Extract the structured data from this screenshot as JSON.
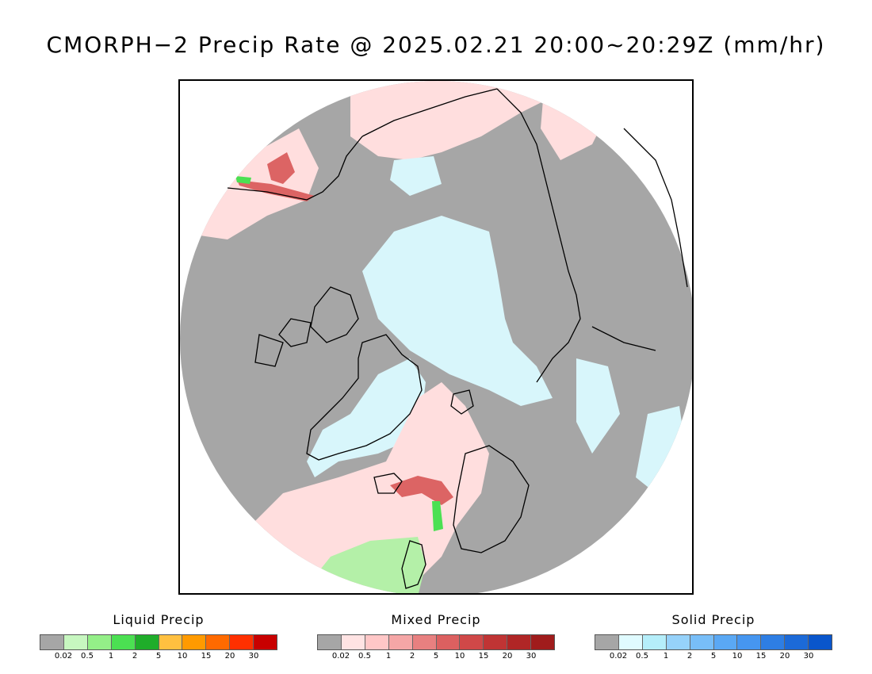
{
  "title": "CMORPH−2 Precip Rate @ 2025.02.21 20:00~20:29Z (mm/hr)",
  "legends": [
    {
      "id": "liquid",
      "title": "Liquid Precip",
      "colors": [
        "#a6a6a6",
        "#c7f7c0",
        "#94ef88",
        "#4be052",
        "#1fad2a",
        "#ffc040",
        "#ff9a00",
        "#ff6a00",
        "#ff3000",
        "#c80000"
      ],
      "ticks": [
        "0.02",
        "0.5",
        "1",
        "2",
        "5",
        "10",
        "15",
        "20",
        "30"
      ]
    },
    {
      "id": "mixed",
      "title": "Mixed Precip",
      "colors": [
        "#a6a6a6",
        "#ffe3e3",
        "#ffc7c7",
        "#f5a6a6",
        "#e88080",
        "#dc6060",
        "#d04848",
        "#c03434",
        "#b02626",
        "#a01c1c"
      ],
      "ticks": [
        "0.02",
        "0.5",
        "1",
        "2",
        "5",
        "10",
        "15",
        "20",
        "30"
      ]
    },
    {
      "id": "solid",
      "title": "Solid Precip",
      "colors": [
        "#a6a6a6",
        "#e0fbff",
        "#b5eefa",
        "#96d2fa",
        "#78bef8",
        "#5aa8f4",
        "#4696f0",
        "#2e7ee4",
        "#1c6ad8",
        "#0a56cc"
      ],
      "ticks": [
        "0.02",
        "0.5",
        "1",
        "2",
        "5",
        "10",
        "15",
        "20",
        "30"
      ]
    }
  ],
  "map": {
    "projection": "polar-stereographic-north",
    "colors": {
      "no_precip": "#a6a6a6",
      "mixed_light": "#ffdede",
      "mixed_heavy": "#dc6464",
      "solid_light": "#d8f6fb",
      "liquid_light": "#b4f0a8",
      "liquid_heavy": "#4be052",
      "coastline": "#000000"
    }
  }
}
